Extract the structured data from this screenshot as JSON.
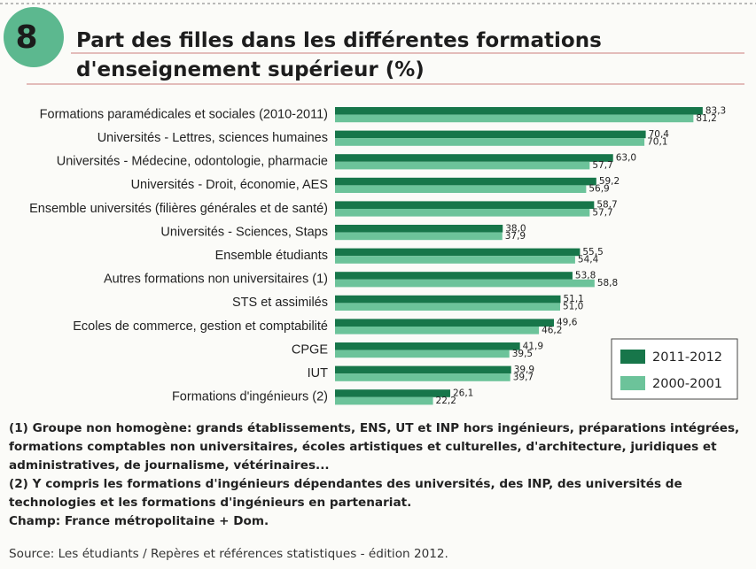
{
  "chart_data": {
    "type": "bar",
    "orientation": "horizontal",
    "figure_number": "8",
    "title": "Part des filles dans les différentes formations d'enseignement supérieur (%)",
    "categories": [
      "Formations paramédicales et sociales (2010-2011)",
      "Universités - Lettres, sciences humaines",
      "Universités - Médecine, odontologie, pharmacie",
      "Universités - Droit, économie, AES",
      "Ensemble universités (filières générales et de santé)",
      "Universités - Sciences, Staps",
      "Ensemble étudiants",
      "Autres formations non universitaires (1)",
      "STS et assimilés",
      "Ecoles de commerce, gestion et comptabilité",
      "CPGE",
      "IUT",
      "Formations d'ingénieurs (2)"
    ],
    "series": [
      {
        "name": "2011-2012",
        "color": "#17764a",
        "values": [
          83.3,
          70.4,
          63.0,
          59.2,
          58.7,
          38.0,
          55.5,
          53.8,
          51.1,
          49.6,
          41.9,
          39.9,
          26.1
        ],
        "value_labels": [
          "83,3",
          "70,4",
          "63,0",
          "59,2",
          "58,7",
          "38,0",
          "55,5",
          "53,8",
          "51,1",
          "49,6",
          "41,9",
          "39,9",
          "26,1"
        ]
      },
      {
        "name": "2000-2001",
        "color": "#6cc39a",
        "values": [
          81.2,
          70.1,
          57.7,
          56.9,
          57.7,
          37.9,
          54.4,
          58.8,
          51.0,
          46.2,
          39.5,
          39.7,
          22.2
        ],
        "value_labels": [
          "81,2",
          "70,1",
          "57,7",
          "56,9",
          "57,7",
          "37,9",
          "54,4",
          "58,8",
          "51,0",
          "46,2",
          "39,5",
          "39,7",
          "22,2"
        ]
      }
    ],
    "legend": "lower right",
    "notes": [
      "(1) Groupe non homogène: grands établissements, ENS, UT et INP hors ingénieurs, préparations intégrées, formations comptables non universitaires, écoles artistiques et culturelles, d'architecture, juridiques et administratives, de journalisme, vétérinaires...",
      "(2) Y compris les formations d'ingénieurs dépendantes des universités, des INP, des universités de technologies et les formations d'ingénieurs en partenariat.",
      "Champ: France métropolitaine + Dom."
    ],
    "source": "Source: Les étudiants / Repères et références statistiques - édition 2012."
  }
}
